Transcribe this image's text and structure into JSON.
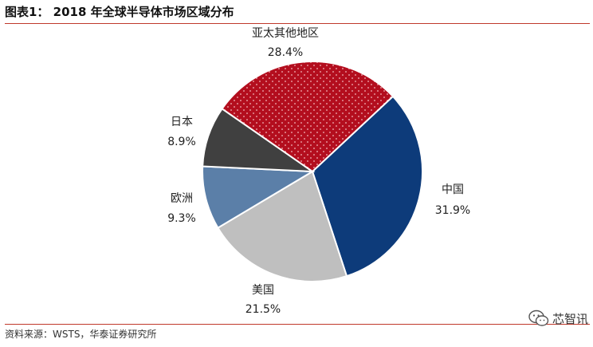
{
  "header": {
    "title": "图表1：  2018 年全球半导体市场区域分布"
  },
  "chart_data": {
    "type": "pie",
    "slices": [
      {
        "name": "中国",
        "value": 31.9,
        "label": "31.9%",
        "color": "#0d3b7a",
        "pattern": "none"
      },
      {
        "name": "美国",
        "value": 21.5,
        "label": "21.5%",
        "color": "#bfbfbf",
        "pattern": "none"
      },
      {
        "name": "欧洲",
        "value": 9.3,
        "label": "9.3%",
        "color": "#5b7fa8",
        "pattern": "none"
      },
      {
        "name": "日本",
        "value": 8.9,
        "label": "8.9%",
        "color": "#404040",
        "pattern": "none"
      },
      {
        "name": "亚太其他地区",
        "value": 28.4,
        "label": "28.4%",
        "color": "#b30e1e",
        "pattern": "dots"
      }
    ],
    "start_angle_deg_clockwise_from_top": 47,
    "direction": "clockwise"
  },
  "footer": {
    "source": "资料来源：WSTS，华泰证券研究所",
    "watermark": "芯智讯",
    "watermark_icon": "wechat-icon"
  }
}
